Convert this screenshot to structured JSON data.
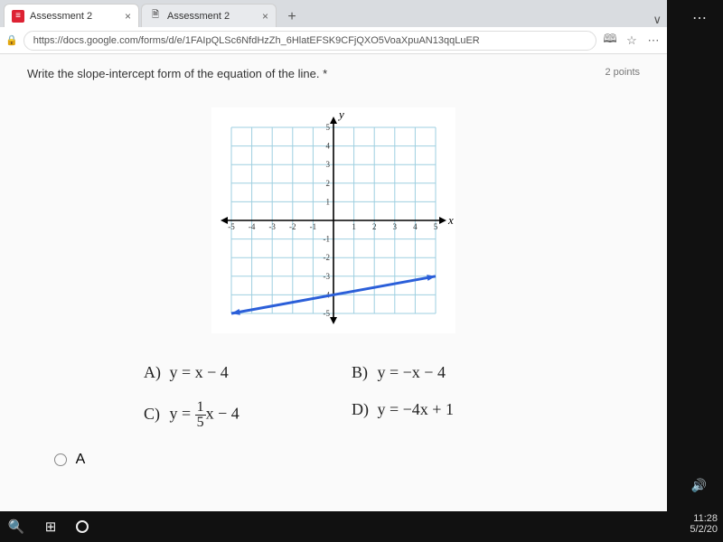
{
  "tabs": [
    {
      "favicon": "red",
      "label": "Assessment 2"
    },
    {
      "favicon": "blank",
      "label": "Assessment 2"
    }
  ],
  "url": "https://docs.google.com/forms/d/e/1FAIpQLSc6NfdHzZh_6HlatEFSK9CFjQXO5VoaXpuAN13qqLuER",
  "question": "Write the slope-intercept form of the equation of the line. *",
  "points": "2 points",
  "graph": {
    "xmin": -5,
    "xmax": 5,
    "ymin": -5,
    "ymax": 5,
    "xticks": [
      -5,
      -4,
      -3,
      -2,
      -1,
      1,
      2,
      3,
      4,
      5
    ],
    "yticks": [
      -5,
      -4,
      -3,
      -2,
      -1,
      1,
      2,
      3,
      4,
      5
    ],
    "xlabel": "x",
    "ylabel": "y",
    "line_color": "#2b5fd9",
    "line_width": 3,
    "grid_color": "#9ecfe0",
    "axis_color": "#000000",
    "line_points": [
      [
        -5,
        -5
      ],
      [
        5,
        -3
      ]
    ]
  },
  "answers": {
    "A": {
      "letter": "A)",
      "text": "y = x − 4"
    },
    "B": {
      "letter": "B)",
      "text": "y = −x − 4"
    },
    "C": {
      "letter": "C)",
      "prefix": "y = ",
      "frac_n": "1",
      "frac_d": "5",
      "suffix": "x − 4"
    },
    "D": {
      "letter": "D)",
      "text": "y = −4x + 1"
    }
  },
  "radio_label": "A",
  "clock": {
    "time": "11:28",
    "date": "5/2/20"
  }
}
